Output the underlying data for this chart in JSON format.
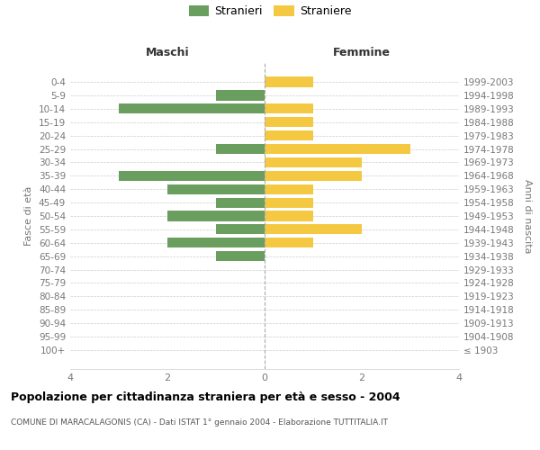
{
  "age_groups": [
    "100+",
    "95-99",
    "90-94",
    "85-89",
    "80-84",
    "75-79",
    "70-74",
    "65-69",
    "60-64",
    "55-59",
    "50-54",
    "45-49",
    "40-44",
    "35-39",
    "30-34",
    "25-29",
    "20-24",
    "15-19",
    "10-14",
    "5-9",
    "0-4"
  ],
  "birth_years": [
    "≤ 1903",
    "1904-1908",
    "1909-1913",
    "1914-1918",
    "1919-1923",
    "1924-1928",
    "1929-1933",
    "1934-1938",
    "1939-1943",
    "1944-1948",
    "1949-1953",
    "1954-1958",
    "1959-1963",
    "1964-1968",
    "1969-1973",
    "1974-1978",
    "1979-1983",
    "1984-1988",
    "1989-1993",
    "1994-1998",
    "1999-2003"
  ],
  "maschi": [
    0,
    0,
    0,
    0,
    0,
    0,
    0,
    1,
    2,
    1,
    2,
    1,
    2,
    3,
    0,
    1,
    0,
    0,
    3,
    1,
    0
  ],
  "femmine": [
    0,
    0,
    0,
    0,
    0,
    0,
    0,
    0,
    1,
    2,
    1,
    1,
    1,
    2,
    2,
    3,
    1,
    1,
    1,
    0,
    1
  ],
  "color_maschi": "#6a9e5e",
  "color_femmine": "#f5c842",
  "bg_color": "#ffffff",
  "grid_color": "#cccccc",
  "title": "Popolazione per cittadinanza straniera per età e sesso - 2004",
  "subtitle": "COMUNE DI MARACALAGONIS (CA) - Dati ISTAT 1° gennaio 2004 - Elaborazione TUTTITALIA.IT",
  "xlabel_left": "Maschi",
  "xlabel_right": "Femmine",
  "ylabel_left": "Fasce di età",
  "ylabel_right": "Anni di nascita",
  "legend_maschi": "Stranieri",
  "legend_femmine": "Straniere",
  "xlim": 4,
  "figsize": [
    6.0,
    5.0
  ],
  "dpi": 100
}
